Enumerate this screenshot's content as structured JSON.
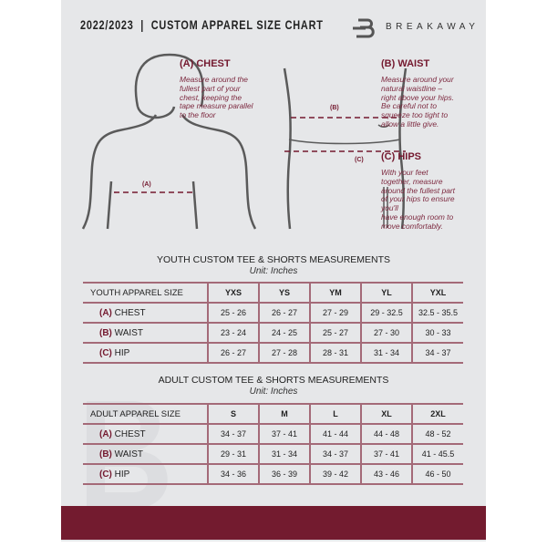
{
  "header": {
    "title": "2022/2023  |  CUSTOM APPAREL SIZE CHART",
    "brand": "BREAKAWAY"
  },
  "guide": {
    "chest": {
      "heading": "(A) CHEST",
      "text": "Measure around the\nfullest part of your\nchest, keeping the\ntape measure parallel\nto the floor",
      "marker": "(A)"
    },
    "waist": {
      "heading": "(B) WAIST",
      "text": "Measure around your\nnatural waistline –\nright above your hips.\nBe careful not to\nsqueeze too tight to\nallow a little give.",
      "marker": "(B)"
    },
    "hips": {
      "heading": "(C) HIPS",
      "text": "With your feet\ntogether, measure\naround the fullest part\nof your hips to ensure\nyou'll\nhave enough room to\nmove comfortably.",
      "marker": "(C)"
    }
  },
  "youth": {
    "title": "YOUTH CUSTOM TEE & SHORTS MEASUREMENTS",
    "unit": "Unit: Inches",
    "header": "YOUTH APPAREL SIZE",
    "sizes": [
      "YXS",
      "YS",
      "YM",
      "YL",
      "YXL"
    ],
    "rows": [
      {
        "code": "(A)",
        "label": "CHEST",
        "values": [
          "25 - 26",
          "26 - 27",
          "27 - 29",
          "29 - 32.5",
          "32.5 - 35.5"
        ]
      },
      {
        "code": "(B)",
        "label": "WAIST",
        "values": [
          "23 - 24",
          "24 - 25",
          "25 - 27",
          "27 - 30",
          "30 - 33"
        ]
      },
      {
        "code": "(C)",
        "label": "HIP",
        "values": [
          "26 - 27",
          "27 - 28",
          "28 - 31",
          "31 - 34",
          "34 - 37"
        ]
      }
    ]
  },
  "adult": {
    "title": "ADULT CUSTOM TEE & SHORTS MEASUREMENTS",
    "unit": "Unit: Inches",
    "header": "ADULT APPAREL SIZE",
    "sizes": [
      "S",
      "M",
      "L",
      "XL",
      "2XL"
    ],
    "rows": [
      {
        "code": "(A)",
        "label": "CHEST",
        "values": [
          "34 - 37",
          "37 - 41",
          "41 - 44",
          "44 - 48",
          "48 - 52"
        ]
      },
      {
        "code": "(B)",
        "label": "WAIST",
        "values": [
          "29 - 31",
          "31 - 34",
          "34 - 37",
          "37 - 41",
          "41 - 45.5"
        ]
      },
      {
        "code": "(C)",
        "label": "HIP",
        "values": [
          "34 - 36",
          "36 - 39",
          "39 - 42",
          "43 - 46",
          "46 - 50"
        ]
      }
    ]
  },
  "colors": {
    "accent": "#731b2f",
    "background": "#e6e7e9"
  }
}
